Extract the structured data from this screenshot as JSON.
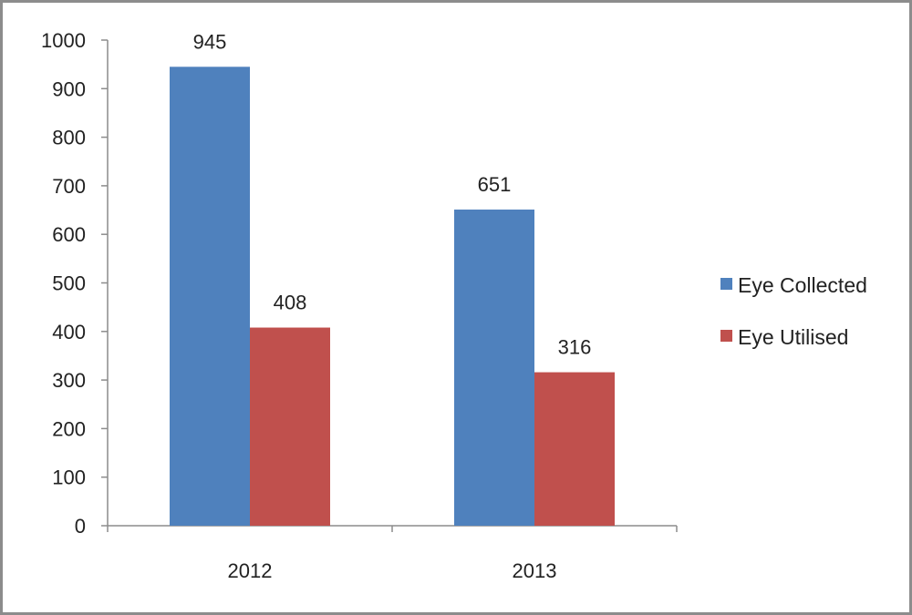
{
  "chart_data": {
    "type": "bar",
    "categories": [
      "2012",
      "2013"
    ],
    "series": [
      {
        "name": "Eye Collected",
        "values": [
          945,
          651
        ],
        "color": "#4f81bd"
      },
      {
        "name": "Eye Utilised",
        "values": [
          408,
          316
        ],
        "color": "#c0504d"
      }
    ],
    "ylim": [
      0,
      1000
    ],
    "yticks": [
      "0",
      "100",
      "200",
      "300",
      "400",
      "500",
      "600",
      "700",
      "800",
      "900",
      "1000"
    ],
    "data_labels": [
      [
        "945",
        "651"
      ],
      [
        "408",
        "316"
      ]
    ],
    "grid": false,
    "legend_position": "right",
    "title": "",
    "xlabel": "",
    "ylabel": ""
  }
}
